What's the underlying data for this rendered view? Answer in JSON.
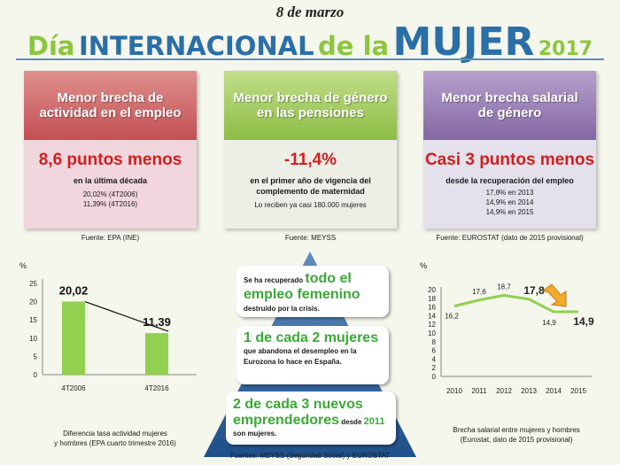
{
  "header": {
    "date": "8 de marzo",
    "title_dia": "Día",
    "title_internacional": "INTERNACIONAL",
    "title_de_la": "de la",
    "title_mujer": "MUJER",
    "title_year": "2017"
  },
  "cards": [
    {
      "title": "Menor brecha de actividad en el empleo",
      "headline": "8,6 puntos menos",
      "subtitle": "en la última década",
      "details": [
        "20,02% (4T2006)",
        "11,39% (4T2016)"
      ],
      "source": "Fuente: EPA (INE)"
    },
    {
      "title": "Menor brecha de género en las pensiones",
      "headline": "-11,4%",
      "subtitle": "en el primer año de vigencia del complemento de maternidad",
      "details": [
        "Lo reciben ya casi 180.000 mujeres"
      ],
      "source": "Fuente: MEYSS"
    },
    {
      "title": "Menor brecha salarial de género",
      "headline": "Casi 3 puntos menos",
      "subtitle": "desde la recuperación del empleo",
      "details": [
        "17,8% en 2013",
        "14,9% en 2014",
        "14,9% en 2015"
      ],
      "source": "Fuente: EUROSTAT (dato de 2015 provisional)"
    }
  ],
  "pyramid": {
    "box1": {
      "t1": "Se ha recuperado ",
      "g1": "todo el empleo femenino",
      "t2": "destruido por la crisis."
    },
    "box2": {
      "g1": "1 de cada 2 mujeres",
      "t1": " que abandona el desempleo en la Eurozona lo hace en España."
    },
    "box3": {
      "g1": "2 de cada 3 nuevos emprendedores",
      "t1": " desde ",
      "b1": "2011",
      "t2": " son mujeres."
    },
    "source": "Fuentes: MEYSS (Seguridad Social) y EUROSTAT"
  },
  "chart_data": [
    {
      "type": "bar",
      "categories": [
        "4T2006",
        "4T2016"
      ],
      "values": [
        20.02,
        11.39
      ],
      "data_labels": [
        "20,02",
        "11,39"
      ],
      "ylabel": "%",
      "yticks": [
        "0",
        "5",
        "10",
        "15",
        "20",
        "25"
      ],
      "ylim": [
        0,
        25
      ],
      "caption_line1": "Diferencia tasa actividad mujeres",
      "caption_line2": "y hombres (EPA cuarto trimestre 2016)",
      "color": "#92d050"
    },
    {
      "type": "line",
      "x": [
        "2010",
        "2011",
        "2012",
        "2013",
        "2014",
        "2015"
      ],
      "values": [
        16.2,
        17.6,
        18.7,
        17.8,
        14.9,
        14.9
      ],
      "data_labels": [
        "16,2",
        "17,6",
        "18,7",
        "17,8",
        "14,9",
        "14,9"
      ],
      "ylabel": "%",
      "yticks": [
        "0",
        "2",
        "4",
        "6",
        "8",
        "10",
        "12",
        "14",
        "16",
        "18",
        "20"
      ],
      "ylim": [
        0,
        20
      ],
      "caption_line1": "Brecha salarial entre mujeres y hombres",
      "caption_line2": "(Eurostat, dato de 2015 provisional)",
      "color": "#92d050"
    }
  ]
}
